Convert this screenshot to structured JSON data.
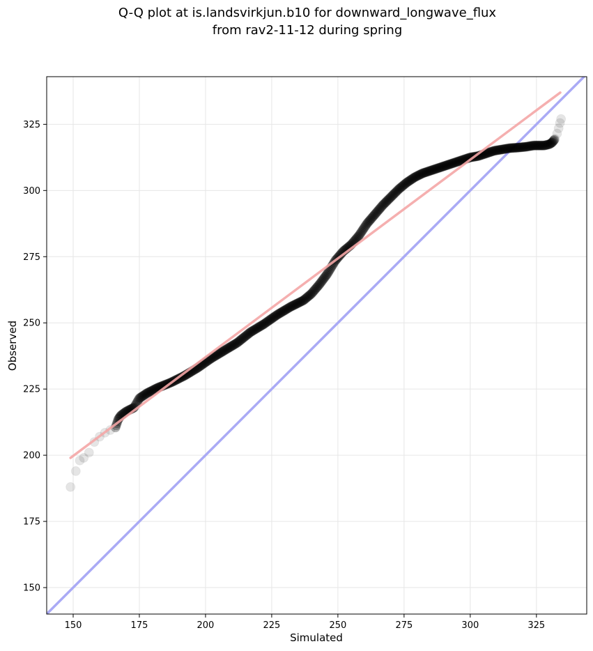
{
  "chart_data": {
    "type": "scatter",
    "title": "Q-Q plot at is.landsvirkjun.b10 for downward_longwave_flux",
    "subtitle": "from rav2-11-12 during spring",
    "xlabel": "Simulated",
    "ylabel": "Observed",
    "xlim": [
      140,
      344
    ],
    "ylim": [
      140,
      343
    ],
    "xticks": [
      150,
      175,
      200,
      225,
      250,
      275,
      300,
      325
    ],
    "yticks": [
      150,
      175,
      200,
      225,
      250,
      275,
      300,
      325
    ],
    "grid": true,
    "colors": {
      "points": "#000000",
      "fit_line": "#f4a6a6",
      "identity_line": "#aaaaf5",
      "grid": "#e6e6e6"
    },
    "fit_line": {
      "x": [
        149,
        334
      ],
      "y": [
        199,
        337
      ]
    },
    "identity_line": {
      "x": [
        140,
        344
      ],
      "y": [
        140,
        344
      ]
    },
    "quantile_curve": {
      "x": [
        149,
        151,
        152.5,
        154,
        156,
        158,
        160,
        162,
        164,
        166,
        167,
        168,
        170,
        173,
        175,
        178,
        182,
        187,
        192,
        197,
        202,
        207,
        212,
        217,
        222,
        227,
        232,
        237,
        240,
        243,
        246,
        249,
        252,
        255,
        258,
        261,
        264,
        267,
        270,
        273,
        276,
        279,
        282,
        285,
        288,
        291,
        294,
        297,
        300,
        303,
        306,
        309,
        312,
        315,
        318,
        321,
        324,
        326,
        328,
        330,
        331,
        332,
        332.8,
        333.4,
        333.9,
        334.3
      ],
      "y": [
        188,
        194,
        198,
        199,
        201,
        205,
        207,
        208.5,
        209.5,
        210.5,
        213.5,
        215,
        216.5,
        218,
        221.5,
        223.5,
        225.5,
        227.5,
        230,
        233,
        236.5,
        239.5,
        242.5,
        246.5,
        249.5,
        253,
        256,
        258.5,
        261,
        264.5,
        268.5,
        273.5,
        277,
        279.5,
        283,
        287.5,
        291,
        294.5,
        297.5,
        300.5,
        303,
        305,
        306.5,
        307.5,
        308.5,
        309.5,
        310.5,
        311.5,
        312.5,
        313,
        314,
        315,
        315.5,
        316,
        316.2,
        316.5,
        317,
        317,
        317,
        317.5,
        318.2,
        319.5,
        321.5,
        323.5,
        325.5,
        327
      ],
      "sparse_below_x": 166,
      "sparse_above_x": 332
    }
  }
}
